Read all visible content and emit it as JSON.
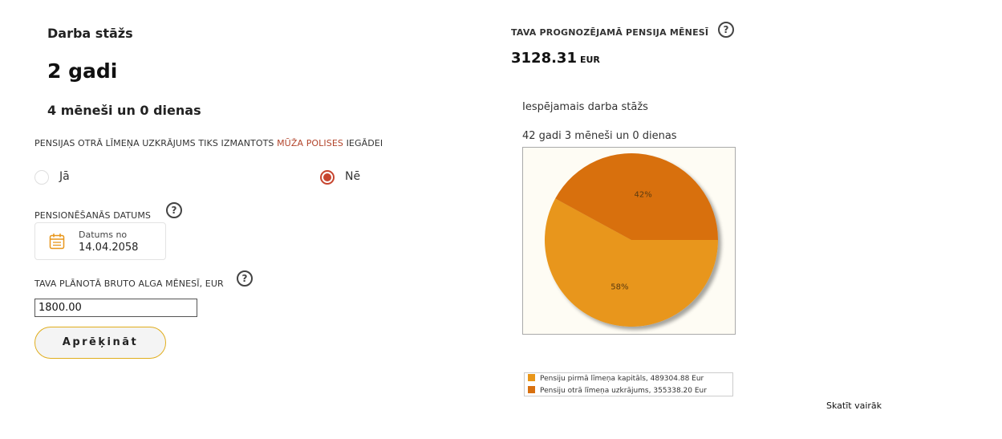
{
  "work_experience": {
    "title": "Darba stāžs",
    "years": "2 gadi",
    "rest": "4 mēneši un 0 dienas"
  },
  "policy_question": {
    "prefix": "PENSIJAS OTRĀ LĪMEŅA UZKRĀJUMS TIKS IZMANTOTS ",
    "link": "MŪŽA POLISES",
    "suffix": " IEGĀDEI",
    "options": [
      {
        "label": "Jā",
        "selected": false
      },
      {
        "label": "Nē",
        "selected": true
      }
    ]
  },
  "retirement_date": {
    "label": "PENSIONĒŠANĀS DATUMS",
    "field_label": "Datums no",
    "value": "14.04.2058"
  },
  "salary": {
    "label": "TAVA PLĀNOTĀ BRUTO ALGA MĒNESĪ, EUR",
    "value": "1800.00"
  },
  "calculate_button": "Aprēķināt",
  "help_glyph": "?",
  "pension": {
    "title": "TAVA PROGNOZĒJAMĀ PENSIJA MĒNESĪ",
    "amount": "3128.31",
    "currency": "EUR"
  },
  "possible_experience": {
    "title": "Iespējamais darba stāžs",
    "value": "42 gadi 3 mēneši un 0 dienas"
  },
  "chart_data": {
    "type": "pie",
    "labels": [
      "Pensiju pirmā līmeņa kapitāls, 489304.88 Eur",
      "Pensiju otrā līmeņa uzkrājums, 355338.20 Eur"
    ],
    "values": [
      489304.88,
      355338.2
    ],
    "percent_labels": [
      "58%",
      "42%"
    ],
    "colors": [
      "#e8961a",
      "#d8700f"
    ],
    "legend_position": "bottom"
  },
  "more_link": "Skatīt vairāk"
}
